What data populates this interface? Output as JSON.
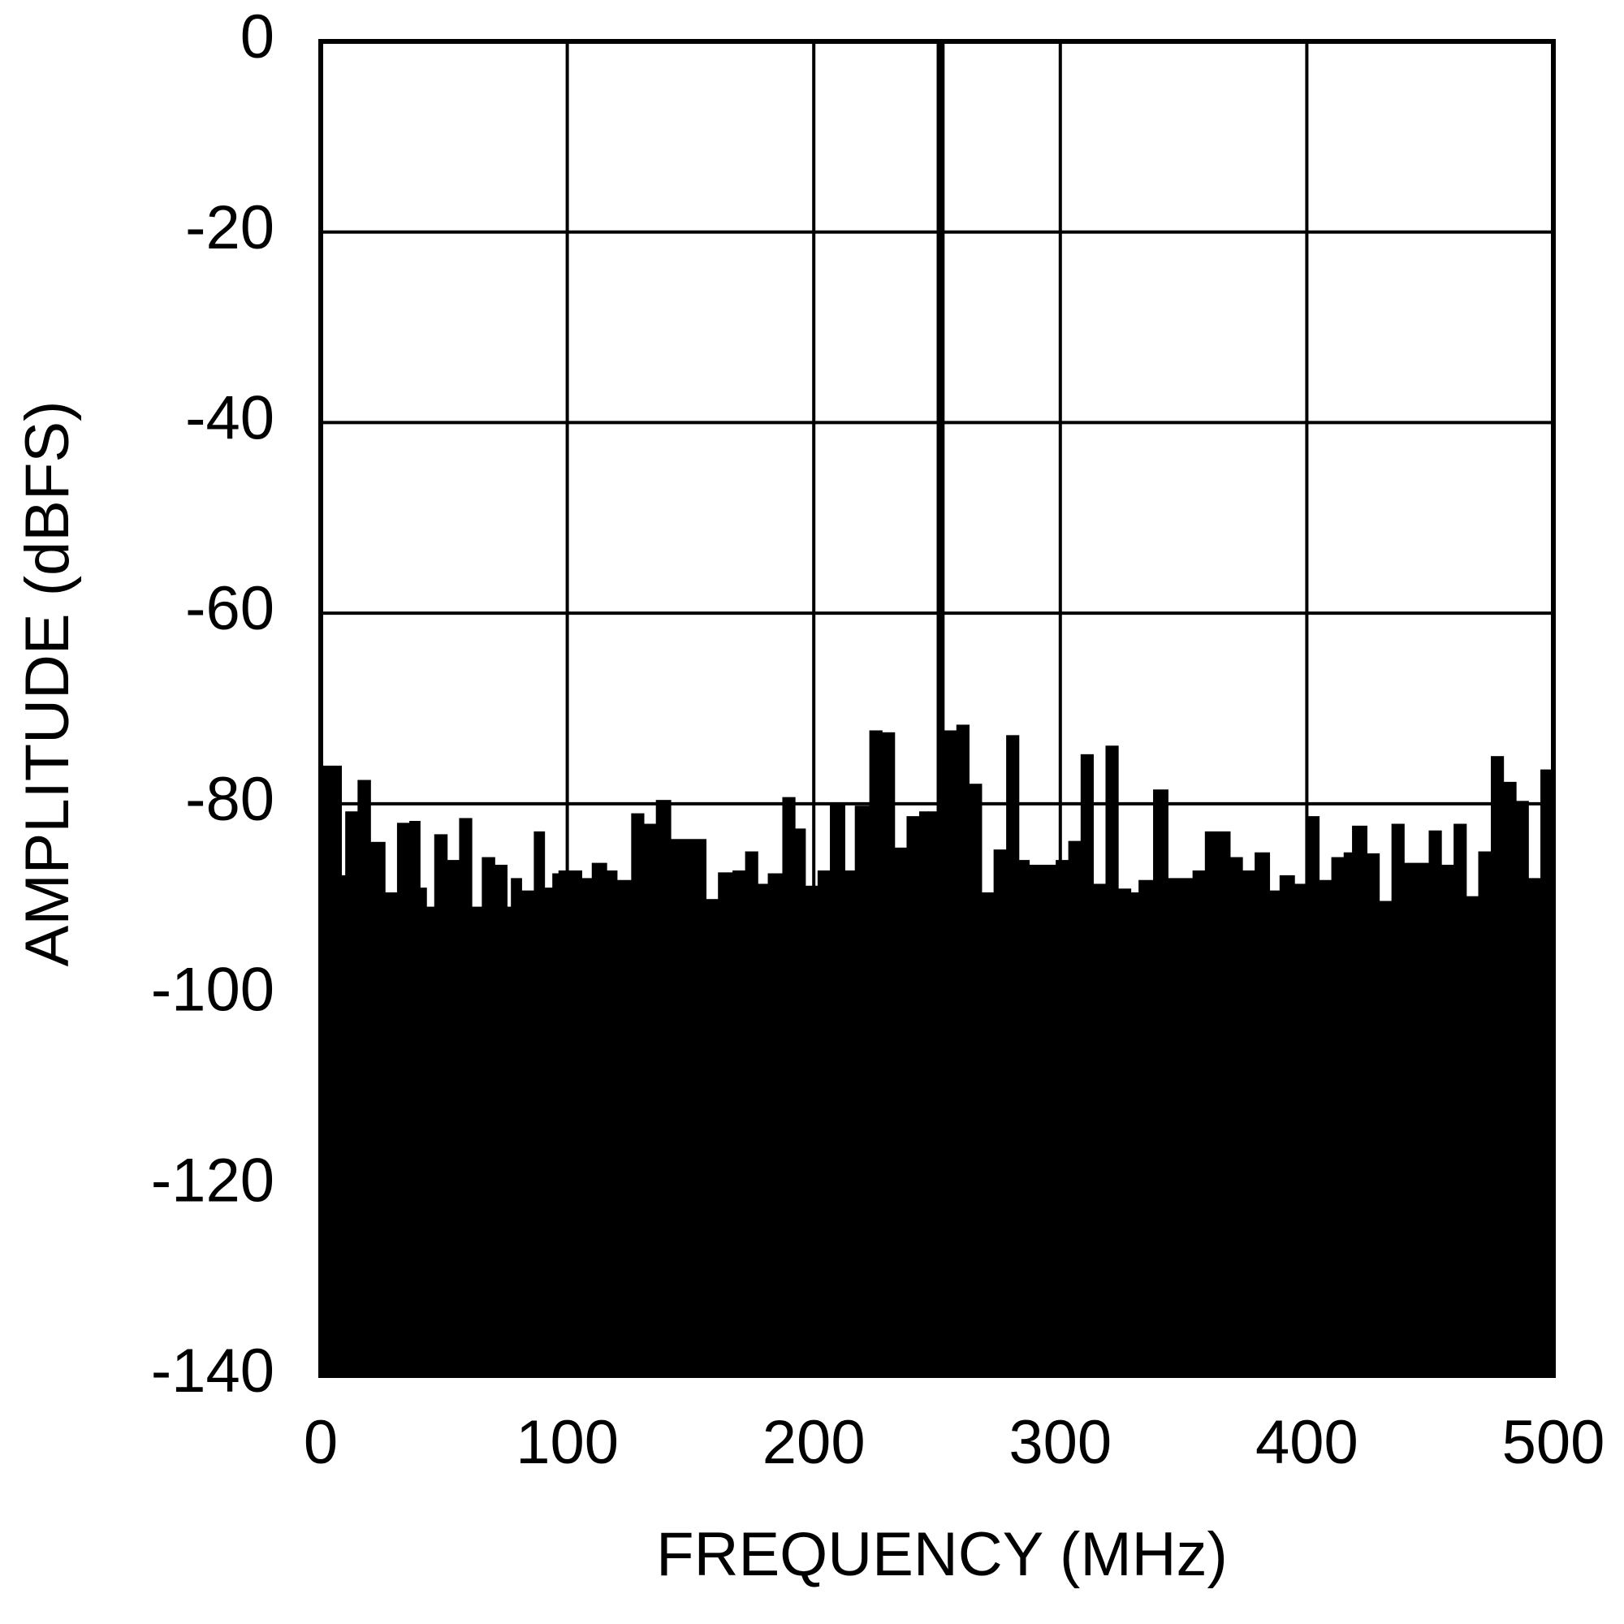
{
  "chart_data": {
    "type": "area",
    "xlabel": "FREQUENCY (MHz)",
    "ylabel": "AMPLITUDE (dBFS)",
    "xlim": [
      0,
      500
    ],
    "xticks": [
      0,
      100,
      200,
      300,
      400,
      500
    ],
    "ylim": [
      -140,
      0
    ],
    "yticks": [
      0,
      -20,
      -40,
      -60,
      -80,
      -100,
      -120,
      -140
    ],
    "grid": true,
    "color": "#000000",
    "x": [
      0,
      5.0,
      8.4,
      10.1,
      15.1,
      20.2,
      26.1,
      31.1,
      36.1,
      40.3,
      42.9,
      46.2,
      51.3,
      56.3,
      61.3,
      65.5,
      70.6,
      75.6,
      77.3,
      81.5,
      86.6,
      90.8,
      94.1,
      96.6,
      105.9,
      110.1,
      116,
      120.2,
      126.1,
      131.1,
      136.1,
      142,
      156.3,
      161.3,
      167.2,
      172.3,
      177.3,
      181.5,
      187.4,
      192.4,
      196.6,
      201.7,
      206.7,
      212.6,
      216.8,
      222.7,
      227.7,
      232.8,
      237.8,
      242.9,
      246.6,
      250,
      252.9,
      258,
      263,
      268.1,
      273.1,
      278.2,
      283.2,
      287.4,
      298.3,
      303.4,
      308.4,
      313.4,
      318.5,
      323.5,
      328.6,
      331.9,
      337.8,
      343.7,
      353.8,
      358.8,
      368.9,
      373.9,
      379,
      384.9,
      389.1,
      395,
      400,
      405,
      410.1,
      415.1,
      418.5,
      424.4,
      429.4,
      434.5,
      439.5,
      449.6,
      454.6,
      459.7,
      464.7,
      469.7,
      474.8,
      479.8,
      484.9,
      489.9,
      494.9,
      500
    ],
    "values": [
      -76,
      -76,
      -87.5,
      -80.8,
      -77.5,
      -84,
      -89.3,
      -82,
      -81.8,
      -88.8,
      -90.8,
      -83.2,
      -85.9,
      -81.5,
      -90.8,
      -85.6,
      -86.4,
      -90.8,
      -87.8,
      -89.1,
      -82.9,
      -88.8,
      -87.3,
      -87,
      -87.8,
      -86.2,
      -87,
      -88,
      -81,
      -82.1,
      -79.6,
      -83.7,
      -90,
      -87.2,
      -87,
      -85,
      -88.4,
      -87.3,
      -79.3,
      -82.6,
      -88.6,
      -87,
      -80.1,
      -87,
      -80.2,
      -72.3,
      -72.5,
      -84.6,
      -81.3,
      -80.8,
      -80.8,
      0,
      -72.3,
      -71.7,
      -77.9,
      -89.3,
      -84.8,
      -72.8,
      -85.9,
      -86.4,
      -85.9,
      -83.9,
      -74.8,
      -88.4,
      -73.9,
      -88.9,
      -89.3,
      -88,
      -78.5,
      -87.8,
      -87,
      -82.9,
      -85.6,
      -87,
      -85.1,
      -89.1,
      -87.5,
      -88.4,
      -81.3,
      -88,
      -85.6,
      -85.1,
      -82.3,
      -85.2,
      -90.2,
      -82.1,
      -86.2,
      -82.8,
      -86.4,
      -82.1,
      -89.7,
      -85,
      -75,
      -77.7,
      -79.7,
      -87.8,
      -76.4,
      -76.4
    ]
  }
}
